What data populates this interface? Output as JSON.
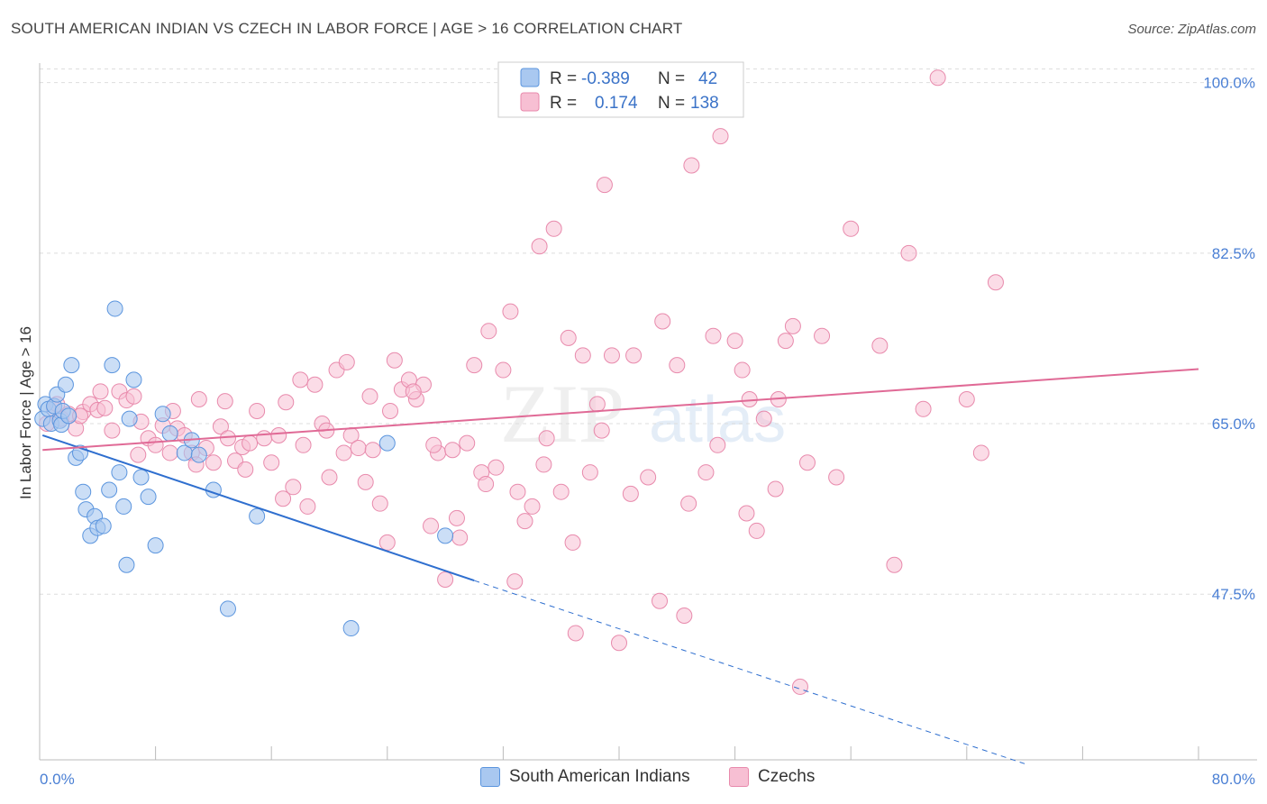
{
  "header": {
    "title": "SOUTH AMERICAN INDIAN VS CZECH IN LABOR FORCE | AGE > 16 CORRELATION CHART",
    "source": "Source: ZipAtlas.com"
  },
  "watermark": {
    "zip": "ZIP",
    "atlas": "atlas"
  },
  "colors": {
    "blue_fill": "#a9c8f0",
    "blue_stroke": "#5b95de",
    "blue_line": "#2f6fcf",
    "pink_fill": "#f7bfd3",
    "pink_stroke": "#e88aac",
    "pink_line": "#e06a96",
    "tick_text": "#4a7fd4",
    "grid": "#dddddd"
  },
  "legend": {
    "series": [
      {
        "r_label": "R =",
        "r_value": "-0.389",
        "n_label": "N =",
        "n_value": "42"
      },
      {
        "r_label": "R =",
        "r_value": "0.174",
        "n_label": "N =",
        "n_value": "138"
      }
    ]
  },
  "bottom_legend": {
    "items": [
      {
        "label": "South American Indians"
      },
      {
        "label": "Czechs"
      }
    ]
  },
  "chart_data": {
    "type": "scatter",
    "title": "SOUTH AMERICAN INDIAN VS CZECH IN LABOR FORCE | AGE > 16 CORRELATION CHART",
    "xlabel": "",
    "ylabel": "In Labor Force | Age > 16",
    "xlim": [
      0,
      80
    ],
    "ylim": [
      30.5,
      102
    ],
    "x_tick_labels": [
      "0.0%",
      "80.0%"
    ],
    "y_ticks": [
      {
        "value": 100.0,
        "label": "100.0%"
      },
      {
        "value": 82.5,
        "label": "82.5%"
      },
      {
        "value": 65.0,
        "label": "65.0%"
      },
      {
        "value": 47.5,
        "label": "47.5%"
      }
    ],
    "series": [
      {
        "name": "South American Indians",
        "color": "#a9c8f0",
        "trend": {
          "x0": 0.2,
          "y0": 63.8,
          "x1": 30.0,
          "y1": 48.9,
          "dash_to_x": 68.0,
          "dash_to_y": 30.1
        },
        "points": [
          [
            0.2,
            65.5
          ],
          [
            0.4,
            67.0
          ],
          [
            0.6,
            66.5
          ],
          [
            0.8,
            65.0
          ],
          [
            1.0,
            66.8
          ],
          [
            1.2,
            68.0
          ],
          [
            1.4,
            65.3
          ],
          [
            1.5,
            64.9
          ],
          [
            1.6,
            66.3
          ],
          [
            1.8,
            69.0
          ],
          [
            2.0,
            65.8
          ],
          [
            2.2,
            71.0
          ],
          [
            2.5,
            61.5
          ],
          [
            2.8,
            62.0
          ],
          [
            3.0,
            58.0
          ],
          [
            3.2,
            56.2
          ],
          [
            3.5,
            53.5
          ],
          [
            3.8,
            55.5
          ],
          [
            4.0,
            54.3
          ],
          [
            4.4,
            54.5
          ],
          [
            4.8,
            58.2
          ],
          [
            5.0,
            71.0
          ],
          [
            5.5,
            60.0
          ],
          [
            5.8,
            56.5
          ],
          [
            6.0,
            50.5
          ],
          [
            6.2,
            65.5
          ],
          [
            6.5,
            69.5
          ],
          [
            7.0,
            59.5
          ],
          [
            7.5,
            57.5
          ],
          [
            8.0,
            52.5
          ],
          [
            8.5,
            66.0
          ],
          [
            9.0,
            64.0
          ],
          [
            10.0,
            62.0
          ],
          [
            10.5,
            63.3
          ],
          [
            11.0,
            61.8
          ],
          [
            12.0,
            58.2
          ],
          [
            13.0,
            46.0
          ],
          [
            15.0,
            55.5
          ],
          [
            21.5,
            44.0
          ],
          [
            24.0,
            63.0
          ],
          [
            28.0,
            53.5
          ],
          [
            5.2,
            76.8
          ]
        ]
      },
      {
        "name": "Czechs",
        "color": "#f7bfd3",
        "trend": {
          "x0": 0.2,
          "y0": 62.3,
          "x1": 80.0,
          "y1": 70.6
        },
        "points": [
          [
            0.5,
            65.0
          ],
          [
            1.0,
            66.5
          ],
          [
            1.5,
            65.5
          ],
          [
            2.0,
            66.0
          ],
          [
            2.5,
            64.5
          ],
          [
            3.0,
            66.2
          ],
          [
            3.5,
            67.0
          ],
          [
            4.0,
            66.4
          ],
          [
            4.5,
            66.6
          ],
          [
            5.0,
            64.3
          ],
          [
            5.5,
            68.3
          ],
          [
            6.0,
            67.4
          ],
          [
            6.5,
            67.8
          ],
          [
            7.0,
            65.2
          ],
          [
            7.5,
            63.5
          ],
          [
            8.0,
            62.8
          ],
          [
            8.5,
            64.8
          ],
          [
            9.0,
            62.0
          ],
          [
            9.5,
            64.5
          ],
          [
            10.0,
            63.8
          ],
          [
            10.5,
            62.0
          ],
          [
            11.0,
            67.5
          ],
          [
            11.5,
            62.5
          ],
          [
            12.0,
            61.0
          ],
          [
            12.5,
            64.7
          ],
          [
            13.0,
            63.5
          ],
          [
            13.5,
            61.2
          ],
          [
            14.0,
            62.6
          ],
          [
            14.5,
            63.0
          ],
          [
            15.0,
            66.3
          ],
          [
            15.5,
            63.5
          ],
          [
            16.0,
            61.0
          ],
          [
            16.5,
            63.8
          ],
          [
            17.0,
            67.2
          ],
          [
            17.5,
            58.5
          ],
          [
            18.0,
            69.5
          ],
          [
            18.5,
            56.5
          ],
          [
            19.0,
            69.0
          ],
          [
            19.5,
            65.0
          ],
          [
            20.0,
            59.5
          ],
          [
            20.5,
            70.5
          ],
          [
            21.0,
            62.0
          ],
          [
            21.5,
            63.8
          ],
          [
            22.0,
            62.5
          ],
          [
            22.5,
            59.0
          ],
          [
            23.0,
            62.3
          ],
          [
            23.5,
            56.8
          ],
          [
            24.0,
            52.8
          ],
          [
            24.5,
            71.5
          ],
          [
            25.0,
            68.5
          ],
          [
            25.5,
            69.5
          ],
          [
            26.0,
            67.5
          ],
          [
            26.5,
            69.0
          ],
          [
            27.0,
            54.5
          ],
          [
            27.5,
            62.0
          ],
          [
            28.0,
            49.0
          ],
          [
            28.5,
            62.3
          ],
          [
            29.0,
            53.3
          ],
          [
            29.5,
            63.0
          ],
          [
            30.0,
            71.0
          ],
          [
            30.5,
            60.0
          ],
          [
            31.0,
            74.5
          ],
          [
            31.5,
            60.5
          ],
          [
            32.0,
            70.5
          ],
          [
            32.5,
            76.5
          ],
          [
            33.0,
            58.0
          ],
          [
            33.5,
            55.0
          ],
          [
            34.0,
            56.5
          ],
          [
            34.5,
            83.2
          ],
          [
            35.0,
            63.5
          ],
          [
            35.5,
            85.0
          ],
          [
            36.0,
            58.0
          ],
          [
            36.5,
            73.8
          ],
          [
            37.0,
            43.5
          ],
          [
            37.5,
            72.0
          ],
          [
            38.0,
            60.0
          ],
          [
            38.5,
            67.0
          ],
          [
            39.0,
            89.5
          ],
          [
            39.5,
            72.0
          ],
          [
            40.0,
            42.5
          ],
          [
            41.0,
            72.0
          ],
          [
            42.0,
            59.5
          ],
          [
            43.0,
            75.5
          ],
          [
            44.0,
            71.0
          ],
          [
            44.5,
            45.3
          ],
          [
            45.0,
            91.5
          ],
          [
            46.0,
            60.0
          ],
          [
            46.5,
            74.0
          ],
          [
            47.0,
            94.5
          ],
          [
            48.0,
            73.5
          ],
          [
            48.5,
            70.5
          ],
          [
            49.0,
            67.5
          ],
          [
            49.5,
            54.0
          ],
          [
            50.0,
            65.5
          ],
          [
            51.0,
            67.5
          ],
          [
            51.5,
            73.5
          ],
          [
            52.0,
            75.0
          ],
          [
            52.5,
            38.0
          ],
          [
            53.0,
            61.0
          ],
          [
            54.0,
            74.0
          ],
          [
            55.0,
            59.5
          ],
          [
            56.0,
            85.0
          ],
          [
            58.0,
            73.0
          ],
          [
            59.0,
            50.5
          ],
          [
            60.0,
            82.5
          ],
          [
            61.0,
            66.5
          ],
          [
            62.0,
            100.5
          ],
          [
            64.0,
            67.5
          ],
          [
            65.0,
            62.0
          ],
          [
            66.0,
            79.5
          ],
          [
            1.2,
            67.0
          ],
          [
            2.8,
            65.8
          ],
          [
            4.2,
            68.3
          ],
          [
            6.8,
            61.8
          ],
          [
            9.2,
            66.3
          ],
          [
            10.8,
            60.8
          ],
          [
            12.8,
            67.3
          ],
          [
            14.2,
            60.3
          ],
          [
            16.8,
            57.3
          ],
          [
            18.2,
            62.8
          ],
          [
            19.8,
            64.3
          ],
          [
            21.2,
            71.3
          ],
          [
            22.8,
            67.8
          ],
          [
            24.2,
            66.3
          ],
          [
            25.8,
            68.3
          ],
          [
            27.2,
            62.8
          ],
          [
            28.8,
            55.3
          ],
          [
            30.8,
            58.8
          ],
          [
            32.8,
            48.8
          ],
          [
            34.8,
            60.8
          ],
          [
            36.8,
            52.8
          ],
          [
            38.8,
            64.3
          ],
          [
            40.8,
            57.8
          ],
          [
            42.8,
            46.8
          ],
          [
            44.8,
            56.8
          ],
          [
            46.8,
            62.8
          ],
          [
            48.8,
            55.8
          ],
          [
            50.8,
            58.3
          ]
        ]
      }
    ]
  }
}
